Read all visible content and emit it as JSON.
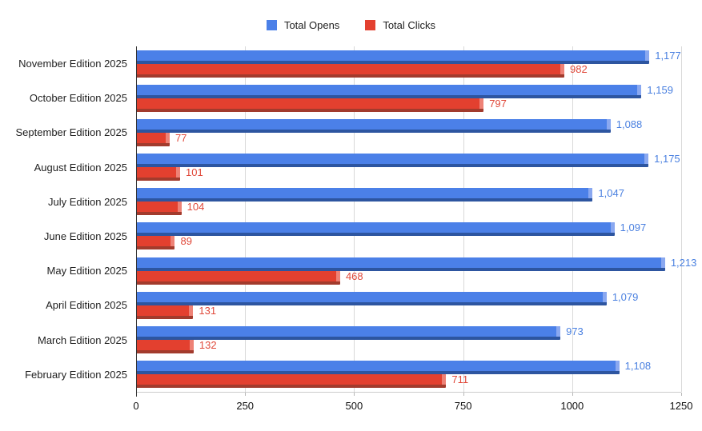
{
  "page": {
    "background": "#ffffff"
  },
  "legend": {
    "items": [
      {
        "label": "Total Opens",
        "color": "#4b80e8"
      },
      {
        "label": "Total Clicks",
        "color": "#e3402f"
      }
    ]
  },
  "chart_data": {
    "type": "bar",
    "orientation": "horizontal",
    "title": "",
    "xlabel": "",
    "ylabel": "",
    "xlim": [
      0,
      1250
    ],
    "x_ticks": [
      0,
      250,
      500,
      750,
      1000,
      1250
    ],
    "x_tick_labels": [
      "0",
      "250",
      "500",
      "750",
      "1000",
      "1250"
    ],
    "grid": true,
    "legend_position": "top",
    "categories": [
      "November Edition 2025",
      "October Edition 2025",
      "September Edition 2025",
      "August Edition 2025",
      "July Edition 2025",
      "June Edition 2025",
      "May Edition 2025",
      "April Edition 2025",
      "March Edition 2025",
      "February Edition 2025"
    ],
    "series": [
      {
        "name": "Total Opens",
        "values": [
          1177,
          1159,
          1088,
          1175,
          1047,
          1097,
          1213,
          1079,
          973,
          1108
        ],
        "labels": [
          "1,177",
          "1,159",
          "1,088",
          "1,175",
          "1,047",
          "1,097",
          "1,213",
          "1,079",
          "973",
          "1,108"
        ],
        "color": "#4b80e8",
        "color_dark": "#2d55a0",
        "color_light": "#8aa8f0",
        "label_color": "#4a80e0"
      },
      {
        "name": "Total Clicks",
        "values": [
          982,
          797,
          77,
          101,
          104,
          89,
          468,
          131,
          132,
          711
        ],
        "labels": [
          "982",
          "797",
          "77",
          "101",
          "104",
          "89",
          "468",
          "131",
          "132",
          "711"
        ],
        "color": "#e3402f",
        "color_dark": "#a23b2d",
        "color_light": "#ee8276",
        "label_color": "#e0493a"
      }
    ],
    "axis_color": "#333333",
    "gridline_color": "#d9d9d9",
    "tick_color": "#b7b7b7",
    "category_label_color": "#1f1f1f",
    "tick_label_color": "#111111"
  }
}
